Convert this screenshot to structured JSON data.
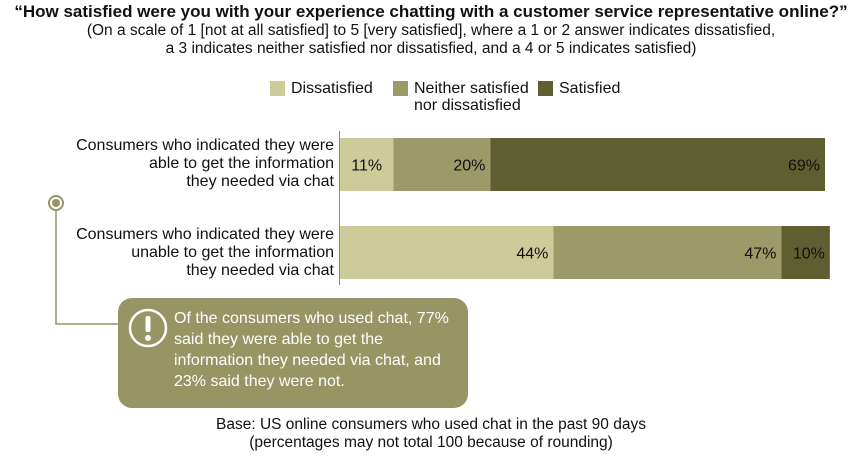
{
  "chart_data": {
    "type": "bar",
    "orientation": "horizontal",
    "stacked": true,
    "title": "“How satisfied were you with your experience chatting with a customer service representative online?”",
    "subtitle": [
      "(On a scale of 1 [not at all satisfied] to 5 [very satisfied], where a 1 or 2 answer indicates dissatisfied,",
      "a 3 indicates neither satisfied nor dissatisfied, and a 4 or 5 indicates satisfied)"
    ],
    "categories": [
      [
        "Consumers who indicated they were",
        "able to get the information",
        "they needed via chat"
      ],
      [
        "Consumers who indicated they were",
        "unable to get the information",
        "they needed via chat"
      ]
    ],
    "series": [
      {
        "name": "Dissatisfied",
        "values": [
          11,
          44
        ],
        "labels": [
          "11%",
          "44%"
        ],
        "color": "#cdcb99"
      },
      {
        "name": "Neither satisfied nor dissatisfied",
        "name_lines": [
          "Neither satisfied",
          "nor dissatisfied"
        ],
        "values": [
          20,
          47
        ],
        "labels": [
          "20%",
          "47%"
        ],
        "color": "#9c9a69"
      },
      {
        "name": "Satisfied",
        "values": [
          69,
          10
        ],
        "labels": [
          "69%",
          "10%"
        ],
        "color": "#5e5e30"
      }
    ],
    "legend_position": "top",
    "grid": false,
    "annotation": [
      "Of the consumers who used chat, 77%",
      "said they were able to get the",
      "information they needed via chat, and",
      "23% said they were not."
    ],
    "annotation_color": "#979563",
    "base_note": [
      "Base: US online consumers who used chat in the past 90 days",
      "(percentages may not total 100 because of rounding)"
    ]
  }
}
